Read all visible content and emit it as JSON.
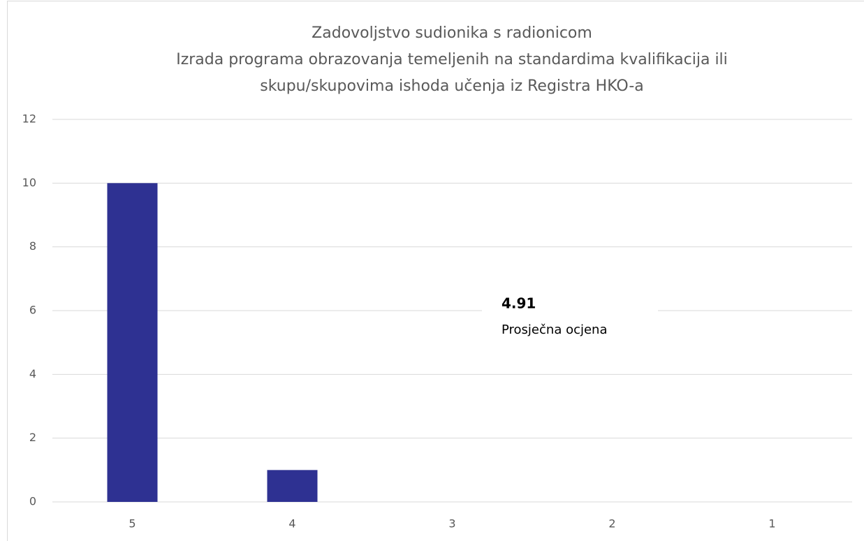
{
  "chart_data": {
    "type": "bar",
    "title": [
      "Zadovoljstvo sudionika s radionicom",
      "Izrada programa obrazovanja temeljenih na standardima kvalifikacija ili",
      "skupu/skupovima ishoda učenja iz Registra HKO-a"
    ],
    "categories": [
      "5",
      "4",
      "3",
      "2",
      "1"
    ],
    "values": [
      10,
      1,
      0,
      0,
      0
    ],
    "color": "#2e3192",
    "ylim": [
      0,
      12
    ],
    "yticks": [
      0,
      2,
      4,
      6,
      8,
      10,
      12
    ],
    "grid": true,
    "annotation": {
      "value": 4.91,
      "label": "Prosječna ocjena"
    }
  }
}
